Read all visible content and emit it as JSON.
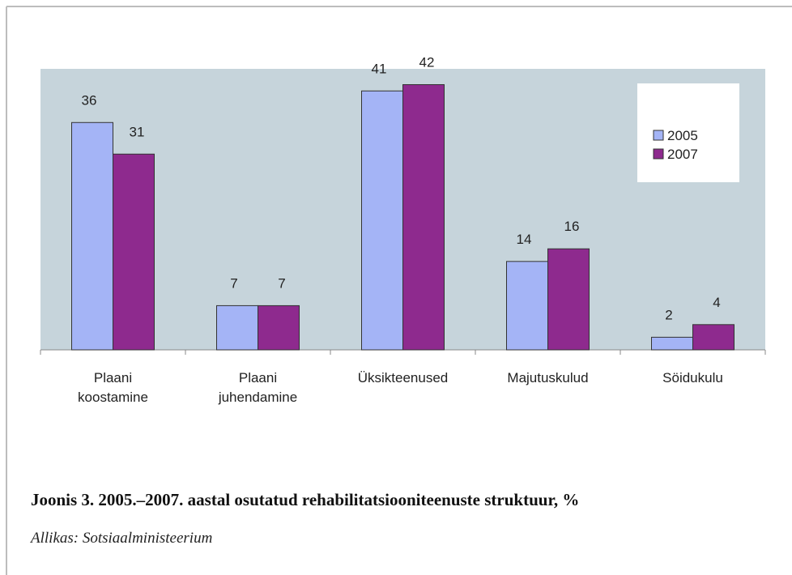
{
  "chart_data": {
    "type": "bar",
    "categories": [
      "Plaani koostamine",
      "Plaani juhendamine",
      "Üksikteenused",
      "Majutuskulud",
      "Söidukulu"
    ],
    "series": [
      {
        "name": "2005",
        "color": "#a4b4f6",
        "values": [
          36,
          7,
          41,
          14,
          2
        ]
      },
      {
        "name": "2007",
        "color": "#8e2a8e",
        "values": [
          31,
          7,
          42,
          16,
          4
        ]
      }
    ],
    "ylim": [
      0,
      44.5
    ],
    "legend": "upper right",
    "caption": "Joonis 3. 2005.–2007. aastal osutatud rehabilitatsiooniteenuste struktuur, %",
    "source": "Allikas: Sotsiaalministeerium"
  }
}
